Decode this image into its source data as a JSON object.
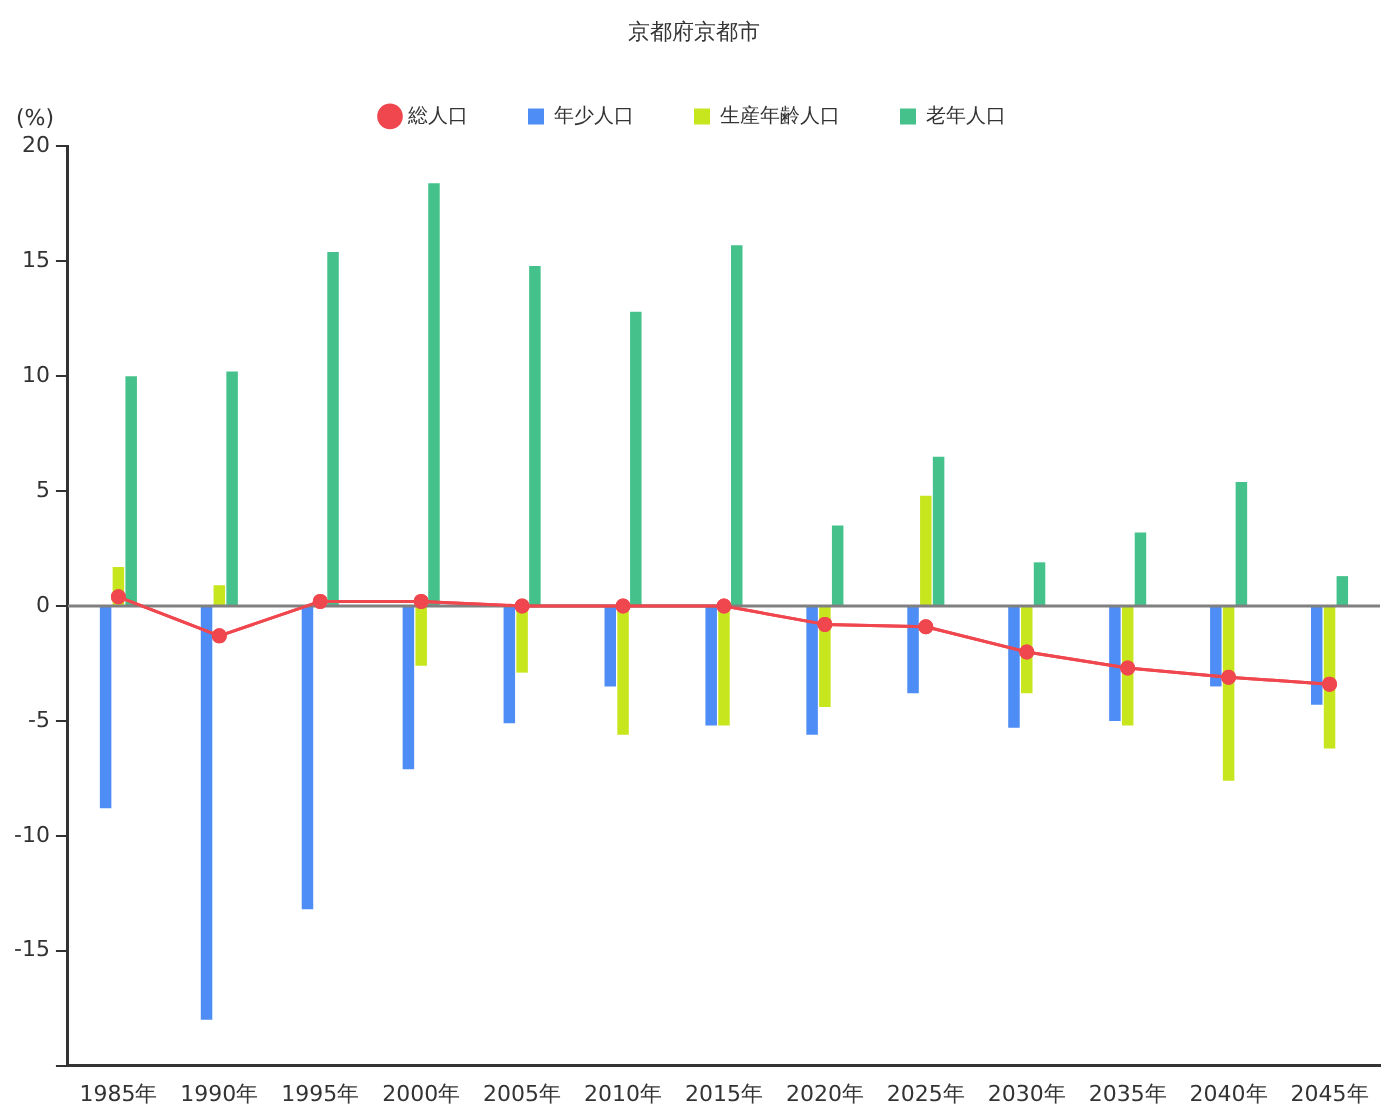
{
  "chart_data": {
    "type": "bar",
    "title": "京都府京都市",
    "ylabel": "(%)",
    "categories": [
      "1985年",
      "1990年",
      "1995年",
      "2000年",
      "2005年",
      "2010年",
      "2015年",
      "2020年",
      "2025年",
      "2030年",
      "2035年",
      "2040年",
      "2045年"
    ],
    "series": [
      {
        "name": "総人口",
        "type": "line",
        "color": "#f0474f",
        "values": [
          0.4,
          -1.3,
          0.2,
          0.2,
          0.0,
          0.0,
          0.0,
          -0.8,
          -0.9,
          -2.0,
          -2.7,
          -3.1,
          -3.4
        ]
      },
      {
        "name": "年少人口",
        "color": "#4e8df5",
        "values": [
          -8.8,
          -18.0,
          -13.2,
          -7.1,
          -5.1,
          -3.5,
          -5.2,
          -5.6,
          -3.8,
          -5.3,
          -5.0,
          -3.5,
          -4.3
        ]
      },
      {
        "name": "生産年齢人口",
        "color": "#c8e61e",
        "values": [
          1.7,
          0.9,
          null,
          -2.6,
          -2.9,
          -5.6,
          -5.2,
          -4.4,
          4.8,
          -3.8,
          -5.2,
          -7.6,
          -6.2
        ]
      },
      {
        "name": "老年人口",
        "color": "#45c28c",
        "values": [
          10.0,
          10.2,
          15.4,
          18.4,
          14.8,
          12.8,
          15.7,
          3.5,
          6.5,
          1.9,
          3.2,
          5.4,
          1.3
        ]
      }
    ],
    "ylim": [
      -20,
      20
    ],
    "yticks": [
      {
        "value": -20,
        "label": null
      },
      -15,
      -10,
      -5,
      0,
      5,
      10,
      15,
      20
    ],
    "ref_lines": [
      {
        "axis": "y",
        "value": 0,
        "color": "#808080"
      }
    ],
    "grid": false,
    "legend": "top",
    "marker": "circle"
  }
}
